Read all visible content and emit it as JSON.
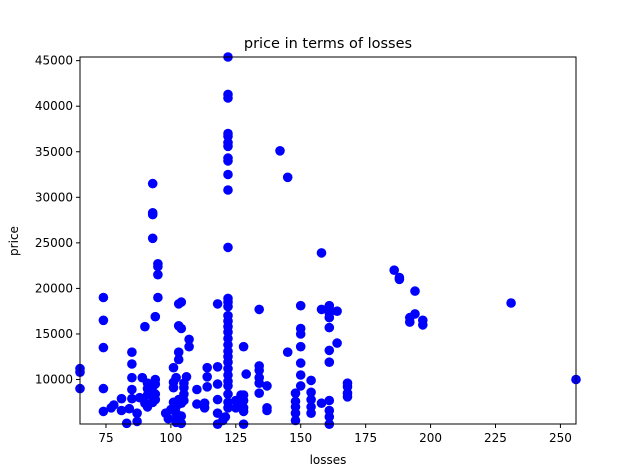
{
  "chart_data": {
    "type": "scatter",
    "title": "price in terms of losses",
    "xlabel": "losses",
    "ylabel": "price",
    "xlim": [
      65,
      256
    ],
    "ylim": [
      5118,
      45400
    ],
    "xticks": [
      75,
      100,
      125,
      150,
      175,
      200,
      225,
      250
    ],
    "yticks": [
      10000,
      15000,
      20000,
      25000,
      30000,
      35000,
      40000,
      45000
    ],
    "grid": false,
    "color": "#0000ff",
    "points": [
      [
        65,
        9000
      ],
      [
        65,
        10800
      ],
      [
        65,
        11200
      ],
      [
        74,
        6500
      ],
      [
        74,
        9000
      ],
      [
        74,
        13500
      ],
      [
        74,
        16500
      ],
      [
        74,
        19000
      ],
      [
        77,
        6900
      ],
      [
        78,
        7200
      ],
      [
        81,
        6600
      ],
      [
        81,
        7900
      ],
      [
        83,
        5200
      ],
      [
        84,
        6800
      ],
      [
        85,
        7900
      ],
      [
        85,
        8900
      ],
      [
        85,
        10200
      ],
      [
        85,
        11700
      ],
      [
        85,
        13000
      ],
      [
        87,
        5400
      ],
      [
        87,
        6300
      ],
      [
        88,
        8000
      ],
      [
        89,
        10200
      ],
      [
        90,
        7400
      ],
      [
        90,
        15800
      ],
      [
        91,
        7000
      ],
      [
        91,
        8300
      ],
      [
        91,
        9000
      ],
      [
        91,
        9600
      ],
      [
        93,
        7500
      ],
      [
        93,
        8600
      ],
      [
        93,
        9200
      ],
      [
        93,
        25500
      ],
      [
        93,
        28100
      ],
      [
        93,
        28300
      ],
      [
        93,
        31500
      ],
      [
        94,
        7800
      ],
      [
        94,
        8400
      ],
      [
        94,
        9500
      ],
      [
        94,
        10000
      ],
      [
        94,
        16900
      ],
      [
        95,
        19000
      ],
      [
        95,
        21500
      ],
      [
        95,
        22400
      ],
      [
        95,
        22700
      ],
      [
        98,
        6300
      ],
      [
        99,
        5700
      ],
      [
        100,
        6700
      ],
      [
        101,
        7500
      ],
      [
        101,
        9100
      ],
      [
        101,
        9700
      ],
      [
        102,
        10200
      ],
      [
        101,
        11300
      ],
      [
        102,
        5300
      ],
      [
        102,
        5600
      ],
      [
        102,
        6300
      ],
      [
        102,
        7000
      ],
      [
        103,
        7800
      ],
      [
        103,
        12200
      ],
      [
        103,
        13000
      ],
      [
        103,
        15900
      ],
      [
        103,
        18300
      ],
      [
        104,
        5200
      ],
      [
        104,
        6000
      ],
      [
        104,
        7400
      ],
      [
        104,
        15600
      ],
      [
        104,
        18500
      ],
      [
        105,
        7700
      ],
      [
        105,
        8400
      ],
      [
        105,
        9100
      ],
      [
        105,
        9600
      ],
      [
        106,
        10300
      ],
      [
        107,
        13600
      ],
      [
        107,
        14400
      ],
      [
        110,
        8900
      ],
      [
        110,
        7300
      ],
      [
        113,
        6900
      ],
      [
        113,
        7400
      ],
      [
        114,
        9200
      ],
      [
        114,
        10300
      ],
      [
        114,
        11300
      ],
      [
        118,
        5100
      ],
      [
        118,
        6300
      ],
      [
        118,
        7800
      ],
      [
        118,
        9500
      ],
      [
        118,
        11400
      ],
      [
        118,
        18300
      ],
      [
        120,
        5500
      ],
      [
        121,
        5900
      ],
      [
        122,
        6900
      ],
      [
        122,
        7500
      ],
      [
        122,
        8400
      ],
      [
        122,
        9300
      ],
      [
        122,
        9800
      ],
      [
        122,
        10500
      ],
      [
        122,
        11200
      ],
      [
        122,
        11900
      ],
      [
        122,
        12500
      ],
      [
        122,
        13100
      ],
      [
        122,
        13800
      ],
      [
        122,
        14500
      ],
      [
        122,
        15200
      ],
      [
        122,
        15800
      ],
      [
        122,
        16400
      ],
      [
        122,
        17000
      ],
      [
        122,
        18000
      ],
      [
        122,
        18500
      ],
      [
        122,
        18900
      ],
      [
        122,
        24500
      ],
      [
        122,
        30800
      ],
      [
        122,
        32500
      ],
      [
        122,
        34000
      ],
      [
        122,
        34300
      ],
      [
        122,
        35600
      ],
      [
        122,
        36000
      ],
      [
        122,
        36700
      ],
      [
        122,
        37000
      ],
      [
        122,
        40900
      ],
      [
        122,
        41300
      ],
      [
        122,
        45400
      ],
      [
        125,
        6900
      ],
      [
        125,
        7700
      ],
      [
        127,
        7400
      ],
      [
        127,
        8300
      ],
      [
        128,
        5100
      ],
      [
        128,
        6500
      ],
      [
        128,
        6900
      ],
      [
        128,
        7700
      ],
      [
        128,
        8300
      ],
      [
        129,
        10600
      ],
      [
        128,
        13600
      ],
      [
        134,
        8500
      ],
      [
        134,
        9600
      ],
      [
        134,
        10200
      ],
      [
        134,
        11000
      ],
      [
        134,
        11500
      ],
      [
        134,
        17700
      ],
      [
        137,
        6600
      ],
      [
        137,
        6900
      ],
      [
        137,
        9300
      ],
      [
        142,
        35100
      ],
      [
        145,
        13000
      ],
      [
        145,
        32200
      ],
      [
        148,
        5500
      ],
      [
        148,
        6300
      ],
      [
        148,
        7000
      ],
      [
        148,
        7600
      ],
      [
        148,
        8500
      ],
      [
        150,
        9300
      ],
      [
        150,
        10500
      ],
      [
        150,
        11800
      ],
      [
        150,
        13600
      ],
      [
        150,
        15000
      ],
      [
        150,
        15600
      ],
      [
        150,
        18100
      ],
      [
        154,
        6300
      ],
      [
        154,
        7000
      ],
      [
        154,
        7800
      ],
      [
        154,
        8600
      ],
      [
        154,
        9900
      ],
      [
        158,
        7400
      ],
      [
        158,
        17700
      ],
      [
        158,
        23900
      ],
      [
        161,
        5100
      ],
      [
        161,
        5900
      ],
      [
        161,
        6600
      ],
      [
        161,
        7700
      ],
      [
        161,
        11900
      ],
      [
        161,
        13200
      ],
      [
        161,
        15700
      ],
      [
        161,
        16800
      ],
      [
        161,
        17300
      ],
      [
        161,
        17700
      ],
      [
        161,
        18100
      ],
      [
        164,
        14000
      ],
      [
        164,
        17500
      ],
      [
        168,
        8100
      ],
      [
        168,
        8500
      ],
      [
        168,
        9200
      ],
      [
        168,
        9600
      ],
      [
        186,
        22000
      ],
      [
        188,
        21000
      ],
      [
        188,
        21200
      ],
      [
        192,
        16300
      ],
      [
        192,
        16800
      ],
      [
        194,
        17200
      ],
      [
        194,
        19700
      ],
      [
        197,
        16000
      ],
      [
        197,
        16500
      ],
      [
        231,
        18400
      ],
      [
        256,
        10000
      ]
    ]
  }
}
